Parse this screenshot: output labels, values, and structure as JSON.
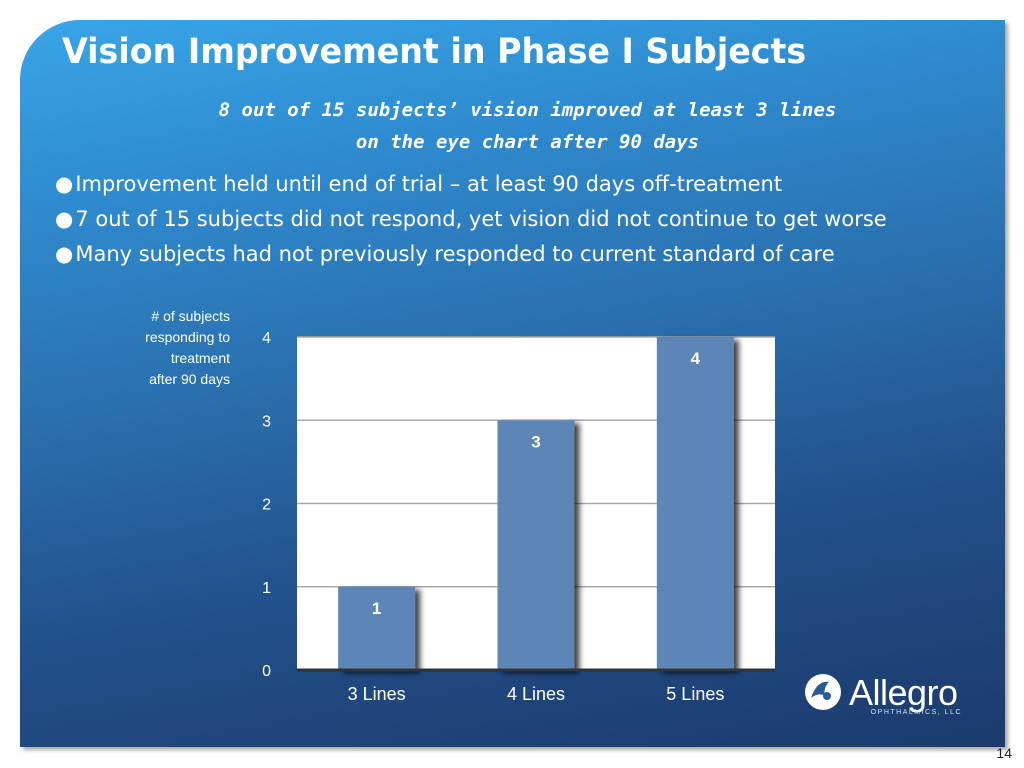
{
  "slide": {
    "title": "Vision Improvement in Phase I Subjects",
    "subtitle_line1": "8 out of 15 subjects’ vision improved at least 3 lines",
    "subtitle_line2": "on the eye chart after 90 days",
    "bullets": [
      "Improvement held until end of trial – at least 90 days off-treatment",
      "7 out of 15 subjects did not respond, yet vision did not continue to get worse",
      "Many subjects had not previously responded to current standard of care"
    ],
    "page_number": "14"
  },
  "logo": {
    "name": "Allegro",
    "subtitle": "OPHTHALMICS, LLC"
  },
  "chart_data": {
    "type": "bar",
    "categories": [
      "3 Lines",
      "4 Lines",
      "5 Lines"
    ],
    "values": [
      1,
      3,
      4
    ],
    "data_labels": [
      "1",
      "3",
      "4"
    ],
    "ylabel": "# of subjects responding to treatment after 90 days",
    "ylabel_lines": [
      "# of subjects",
      "responding to",
      "treatment",
      "after 90 days"
    ],
    "yticks": [
      0,
      1,
      2,
      3,
      4
    ],
    "ylim": [
      0,
      4
    ],
    "grid": true,
    "bar_color": "#5b86b6",
    "plot_background": "#ffffff"
  }
}
